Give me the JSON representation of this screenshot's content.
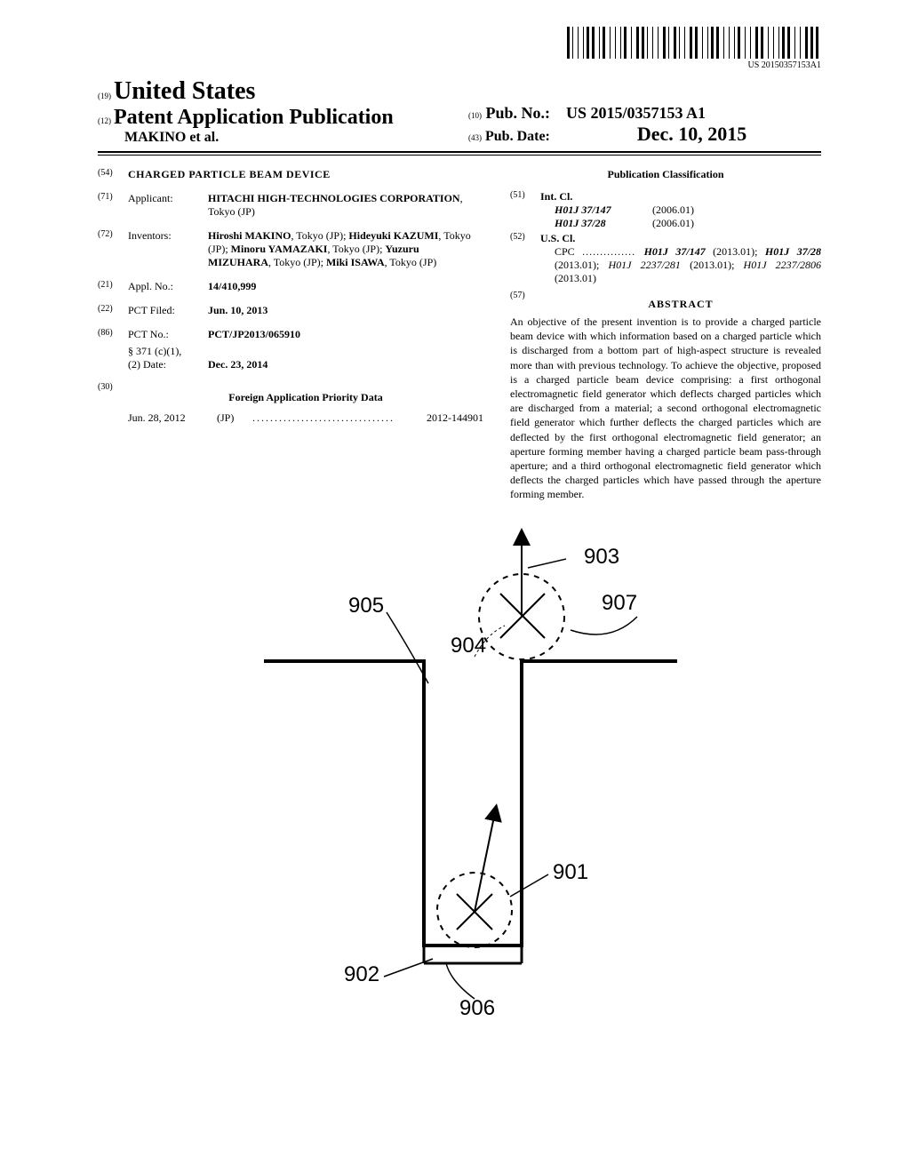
{
  "publication_id": "US 20150357153A1",
  "header": {
    "country_prefix": "(19)",
    "country": "United States",
    "pub_prefix": "(12)",
    "pub_type": "Patent Application Publication",
    "authors": "MAKINO et al.",
    "pub_no_prefix": "(10)",
    "pub_no_label": "Pub. No.:",
    "pub_no": "US 2015/0357153 A1",
    "pub_date_prefix": "(43)",
    "pub_date_label": "Pub. Date:",
    "pub_date": "Dec. 10, 2015"
  },
  "left_col": {
    "title_num": "(54)",
    "title": "CHARGED PARTICLE BEAM DEVICE",
    "applicant_num": "(71)",
    "applicant_label": "Applicant:",
    "applicant_name": "HITACHI HIGH-TECHNOLOGIES CORPORATION",
    "applicant_loc": ", Tokyo (JP)",
    "inventors_num": "(72)",
    "inventors_label": "Inventors:",
    "inventor1": "Hiroshi MAKINO",
    "inventor1_loc": ", Tokyo (JP); ",
    "inventor2": "Hideyuki KAZUMI",
    "inventor2_loc": ", Tokyo (JP); ",
    "inventor3": "Minoru YAMAZAKI",
    "inventor3_loc": ", Tokyo (JP); ",
    "inventor4": "Yuzuru MIZUHARA",
    "inventor4_loc": ", Tokyo (JP); ",
    "inventor5": "Miki ISAWA",
    "inventor5_loc": ", Tokyo (JP)",
    "appl_no_num": "(21)",
    "appl_no_label": "Appl. No.:",
    "appl_no": "14/410,999",
    "pct_filed_num": "(22)",
    "pct_filed_label": "PCT Filed:",
    "pct_filed": "Jun. 10, 2013",
    "pct_no_num": "(86)",
    "pct_no_label": "PCT No.:",
    "pct_no": "PCT/JP2013/065910",
    "sec371_label": "§ 371 (c)(1),",
    "sec371_date_label": "(2) Date:",
    "sec371_date": "Dec. 23, 2014",
    "priority_num": "(30)",
    "priority_heading": "Foreign Application Priority Data",
    "priority_date": "Jun. 28, 2012",
    "priority_country": "(JP)",
    "priority_app_no": "2012-144901"
  },
  "right_col": {
    "classification_heading": "Publication Classification",
    "intcl_num": "(51)",
    "intcl_label": "Int. Cl.",
    "intcl1_code": "H01J 37/147",
    "intcl1_year": "(2006.01)",
    "intcl2_code": "H01J 37/28",
    "intcl2_year": "(2006.01)",
    "uscl_num": "(52)",
    "uscl_label": "U.S. Cl.",
    "cpc_label": "CPC",
    "cpc1": "H01J 37/147",
    "cpc1_year": " (2013.01); ",
    "cpc2": "H01J 37/28",
    "cpc2_year": " (2013.01); ",
    "cpc3": "H01J 2237/281",
    "cpc3_year": " (2013.01); ",
    "cpc4": "H01J 2237/2806",
    "cpc4_year": " (2013.01)",
    "abstract_num": "(57)",
    "abstract_heading": "ABSTRACT",
    "abstract_text": "An objective of the present invention is to provide a charged particle beam device with which information based on a charged particle which is discharged from a bottom part of high-aspect structure is revealed more than with previous technology. To achieve the objective, proposed is a charged particle beam device comprising: a first orthogonal electromagnetic field generator which deflects charged particles which are discharged from a material; a second orthogonal electromagnetic field generator which further deflects the charged particles which are deflected by the first orthogonal electromagnetic field generator; an aperture forming member having a charged particle beam pass-through aperture; and a third orthogonal electromagnetic field generator which deflects the charged particles which have passed through the aperture forming member."
  },
  "figure": {
    "labels": {
      "l903": "903",
      "l905": "905",
      "l904": "904",
      "l907": "907",
      "l901": "901",
      "l902": "902",
      "l906": "906"
    }
  },
  "barcode_widths": [
    3,
    1,
    1,
    3,
    1,
    3,
    1,
    1,
    3,
    1,
    3,
    3,
    1,
    1,
    3,
    3,
    1,
    3,
    1,
    3,
    1,
    1,
    3,
    3,
    1,
    3,
    3,
    1,
    3,
    1,
    1,
    3,
    1,
    3,
    1,
    3,
    3,
    1,
    1,
    3,
    3,
    1,
    1,
    3,
    1,
    3,
    3,
    1,
    3,
    3,
    1,
    3,
    1,
    1,
    3,
    1,
    3,
    3,
    1,
    3,
    1,
    3,
    1,
    1,
    3,
    3,
    1,
    3,
    1,
    3,
    3,
    1,
    3,
    3,
    1,
    3,
    1,
    3,
    1,
    1,
    3,
    1,
    3,
    3,
    1,
    3,
    1,
    3,
    3,
    1,
    3,
    1,
    3,
    1
  ],
  "barcode_height": 36
}
